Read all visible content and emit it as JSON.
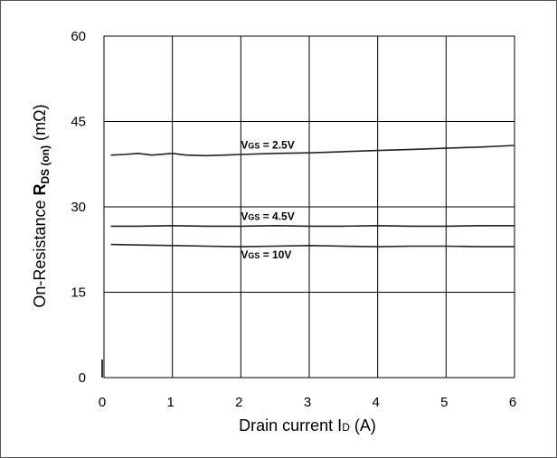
{
  "chart_data": {
    "type": "line",
    "title": "",
    "xlabel": "Drain current I",
    "xlabel_sub": "D",
    "xlabel_unit": " (A)",
    "ylabel_prefix": "On-Resistance  ",
    "ylabel_symbol": "R",
    "ylabel_sub": "DS (on)",
    "ylabel_unit": " (mΩ)",
    "xlim": [
      0,
      6
    ],
    "ylim": [
      0,
      60
    ],
    "xticks": [
      "0",
      "1",
      "2",
      "3",
      "4",
      "5",
      "6"
    ],
    "yticks": [
      "0",
      "15",
      "30",
      "45",
      "60"
    ],
    "grid": true,
    "series": [
      {
        "label_main": "V",
        "label_sub": "GS",
        "label_value": " = 2.5V",
        "x": [
          0.1,
          0.3,
          0.5,
          0.7,
          0.9,
          1.0,
          1.2,
          1.5,
          2.0,
          2.5,
          3.0,
          3.5,
          4.0,
          4.5,
          5.0,
          5.5,
          6.0
        ],
        "y": [
          39.1,
          39.2,
          39.4,
          39.1,
          39.3,
          39.4,
          39.1,
          39.0,
          39.2,
          39.4,
          39.5,
          39.7,
          39.9,
          40.1,
          40.3,
          40.5,
          40.8
        ]
      },
      {
        "label_main": "V",
        "label_sub": "GS",
        "label_value": " = 4.5V",
        "x": [
          0.1,
          0.5,
          1.0,
          1.5,
          2.0,
          2.5,
          3.0,
          3.5,
          4.0,
          4.5,
          5.0,
          5.5,
          6.0
        ],
        "y": [
          26.6,
          26.6,
          26.7,
          26.6,
          26.6,
          26.7,
          26.6,
          26.6,
          26.7,
          26.6,
          26.6,
          26.7,
          26.7
        ]
      },
      {
        "label_main": "V",
        "label_sub": "GS",
        "label_value": " = 10V",
        "x": [
          0.1,
          0.5,
          1.0,
          1.5,
          2.0,
          2.5,
          3.0,
          3.5,
          4.0,
          4.5,
          5.0,
          5.5,
          6.0
        ],
        "y": [
          23.4,
          23.3,
          23.2,
          23.1,
          23.0,
          23.1,
          23.2,
          23.1,
          23.0,
          23.1,
          23.1,
          23.0,
          23.0
        ]
      }
    ]
  }
}
